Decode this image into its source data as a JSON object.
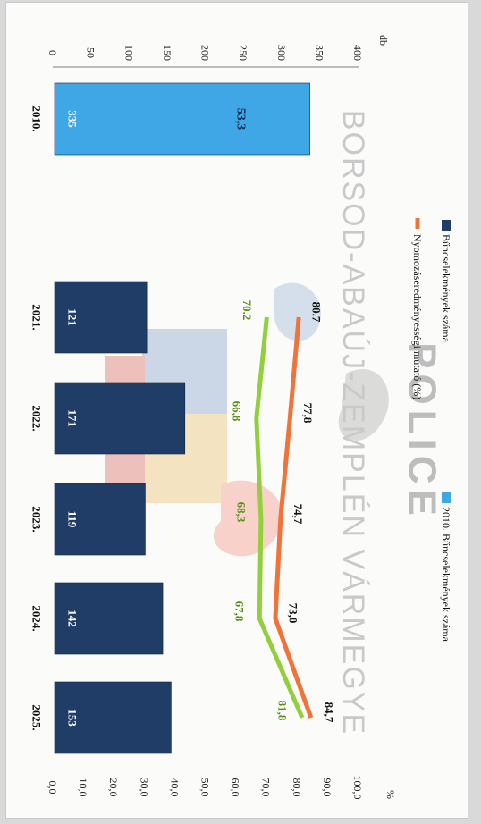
{
  "chart_data": {
    "type": "bar",
    "categories": [
      "2010.",
      "2021.",
      "2022.",
      "2023.",
      "2024.",
      "2025."
    ],
    "series": [
      {
        "name": "Bűncselekmények száma",
        "kind": "bar",
        "axis": "left",
        "color": "#1f3d66",
        "values": [
          null,
          121,
          171,
          119,
          142,
          153
        ],
        "labels": [
          "",
          "121",
          "171",
          "119",
          "142",
          "153"
        ]
      },
      {
        "name": "2010. Bűncselekmények száma",
        "kind": "bar",
        "axis": "left",
        "color": "#3fa7e6",
        "values": [
          335,
          null,
          null,
          null,
          null,
          null
        ],
        "labels": [
          "335",
          "",
          "",
          "",
          "",
          ""
        ]
      },
      {
        "name": "Nyomozáseredményességi mutató (%)",
        "kind": "line",
        "axis": "right",
        "color": "#f0733a",
        "values": [
          null,
          80.7,
          77.8,
          74.7,
          73.0,
          84.7
        ],
        "labels": [
          "",
          "80.7",
          "77,8",
          "74,7",
          "73,0",
          "84,7"
        ]
      },
      {
        "kind": "line",
        "axis": "right",
        "color": "#92cf3a",
        "values": [
          null,
          70.2,
          66.8,
          68.3,
          67.8,
          81.8
        ],
        "labels": [
          "",
          "70.2",
          "66,8",
          "68,3",
          "67,8",
          "81,8"
        ]
      }
    ],
    "extra_labels": [
      {
        "category": "2010.",
        "text": "53,3"
      }
    ],
    "left_axis": {
      "unit": "db",
      "range": [
        0,
        400
      ],
      "ticks": [
        "0",
        "50",
        "100",
        "150",
        "200",
        "250",
        "300",
        "350",
        "400"
      ]
    },
    "right_axis": {
      "unit": "%",
      "range": [
        0,
        100
      ],
      "ticks": [
        "0,0",
        "10,0",
        "20,0",
        "30,0",
        "40,0",
        "50,0",
        "60,0",
        "70,0",
        "80,0",
        "90,0",
        "100,0"
      ]
    },
    "legend_position": "top",
    "grid": false
  },
  "watermark": {
    "text_top": "BORSOD-ABAÚJ-ZEMPLÉN VÁRMEGYE",
    "text_police": "POLICE"
  }
}
